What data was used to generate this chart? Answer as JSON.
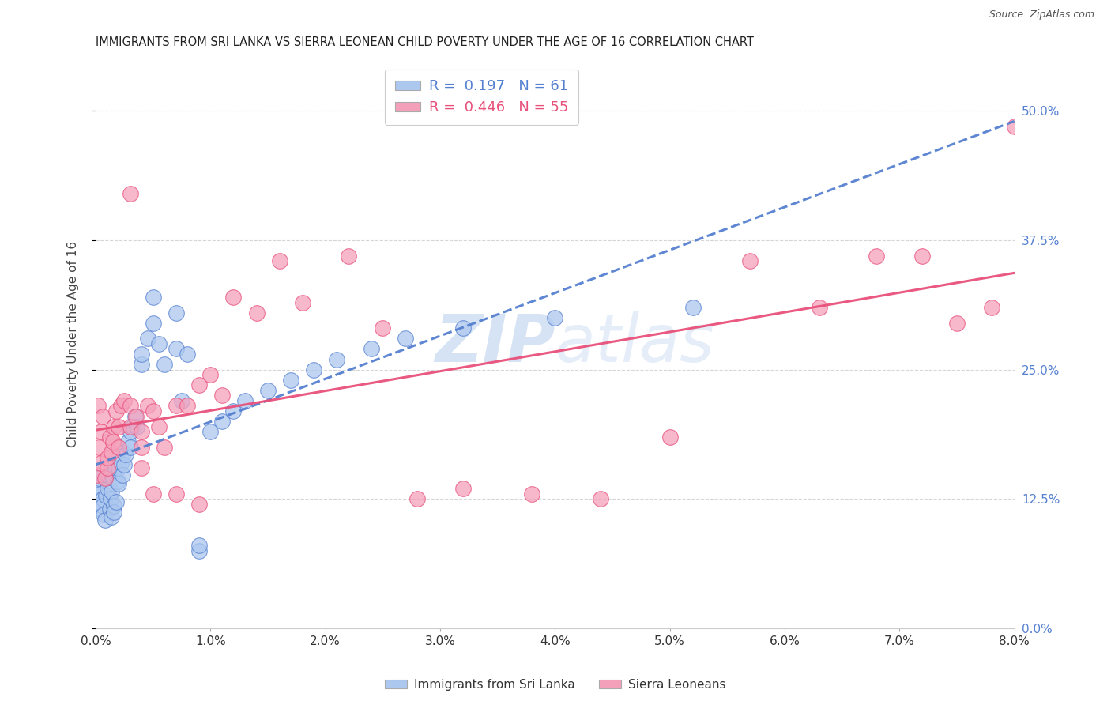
{
  "title": "IMMIGRANTS FROM SRI LANKA VS SIERRA LEONEAN CHILD POVERTY UNDER THE AGE OF 16 CORRELATION CHART",
  "source": "Source: ZipAtlas.com",
  "ylabel": "Child Poverty Under the Age of 16",
  "legend_label1": "Immigrants from Sri Lanka",
  "legend_label2": "Sierra Leoneans",
  "R1": "0.197",
  "N1": "61",
  "R2": "0.446",
  "N2": "55",
  "color1": "#adc8ef",
  "color2": "#f5a0bb",
  "line_color1": "#5580d0",
  "line_color2": "#e8507a",
  "watermark_color": "#c5d8f0",
  "background_color": "#ffffff",
  "xlim": [
    0.0,
    0.08
  ],
  "ylim": [
    0.0,
    0.55
  ],
  "x_ticks": [
    0.0,
    0.01,
    0.02,
    0.03,
    0.04,
    0.05,
    0.06,
    0.07,
    0.08
  ],
  "y_ticks": [
    0.0,
    0.125,
    0.25,
    0.375,
    0.5
  ],
  "sri_lanka_x": [
    0.0002,
    0.0003,
    0.0004,
    0.0004,
    0.0005,
    0.0006,
    0.0006,
    0.0007,
    0.0008,
    0.0009,
    0.001,
    0.001,
    0.0012,
    0.0013,
    0.0014,
    0.0014,
    0.0015,
    0.0016,
    0.0016,
    0.0017,
    0.0018,
    0.0019,
    0.002,
    0.002,
    0.0022,
    0.0023,
    0.0024,
    0.0025,
    0.0026,
    0.0028,
    0.003,
    0.003,
    0.0032,
    0.0034,
    0.0036,
    0.004,
    0.004,
    0.0045,
    0.005,
    0.005,
    0.0055,
    0.006,
    0.007,
    0.007,
    0.0075,
    0.008,
    0.009,
    0.009,
    0.01,
    0.011,
    0.012,
    0.013,
    0.015,
    0.017,
    0.019,
    0.021,
    0.024,
    0.027,
    0.032,
    0.04,
    0.052
  ],
  "sri_lanka_y": [
    0.138,
    0.145,
    0.13,
    0.12,
    0.115,
    0.125,
    0.118,
    0.11,
    0.105,
    0.128,
    0.135,
    0.148,
    0.115,
    0.125,
    0.132,
    0.108,
    0.145,
    0.118,
    0.112,
    0.155,
    0.122,
    0.142,
    0.155,
    0.14,
    0.16,
    0.148,
    0.17,
    0.158,
    0.168,
    0.18,
    0.19,
    0.175,
    0.195,
    0.205,
    0.195,
    0.255,
    0.265,
    0.28,
    0.32,
    0.295,
    0.275,
    0.255,
    0.305,
    0.27,
    0.22,
    0.265,
    0.075,
    0.08,
    0.19,
    0.2,
    0.21,
    0.22,
    0.23,
    0.24,
    0.25,
    0.26,
    0.27,
    0.28,
    0.29,
    0.3,
    0.31
  ],
  "sierra_leone_x": [
    0.0001,
    0.0002,
    0.0003,
    0.0004,
    0.0005,
    0.0006,
    0.0008,
    0.001,
    0.001,
    0.0012,
    0.0014,
    0.0015,
    0.0016,
    0.0018,
    0.002,
    0.002,
    0.0022,
    0.0025,
    0.003,
    0.003,
    0.0035,
    0.004,
    0.004,
    0.0045,
    0.005,
    0.0055,
    0.006,
    0.007,
    0.008,
    0.009,
    0.01,
    0.011,
    0.012,
    0.014,
    0.016,
    0.018,
    0.022,
    0.025,
    0.028,
    0.032,
    0.038,
    0.044,
    0.05,
    0.057,
    0.063,
    0.068,
    0.072,
    0.075,
    0.078,
    0.08,
    0.003,
    0.004,
    0.005,
    0.007,
    0.009
  ],
  "sierra_leone_y": [
    0.148,
    0.215,
    0.175,
    0.16,
    0.19,
    0.205,
    0.145,
    0.155,
    0.165,
    0.185,
    0.17,
    0.18,
    0.195,
    0.21,
    0.175,
    0.195,
    0.215,
    0.22,
    0.215,
    0.195,
    0.205,
    0.19,
    0.175,
    0.215,
    0.21,
    0.195,
    0.175,
    0.215,
    0.215,
    0.235,
    0.245,
    0.225,
    0.32,
    0.305,
    0.355,
    0.315,
    0.36,
    0.29,
    0.125,
    0.135,
    0.13,
    0.125,
    0.185,
    0.355,
    0.31,
    0.36,
    0.36,
    0.295,
    0.31,
    0.485,
    0.42,
    0.155,
    0.13,
    0.13,
    0.12
  ]
}
